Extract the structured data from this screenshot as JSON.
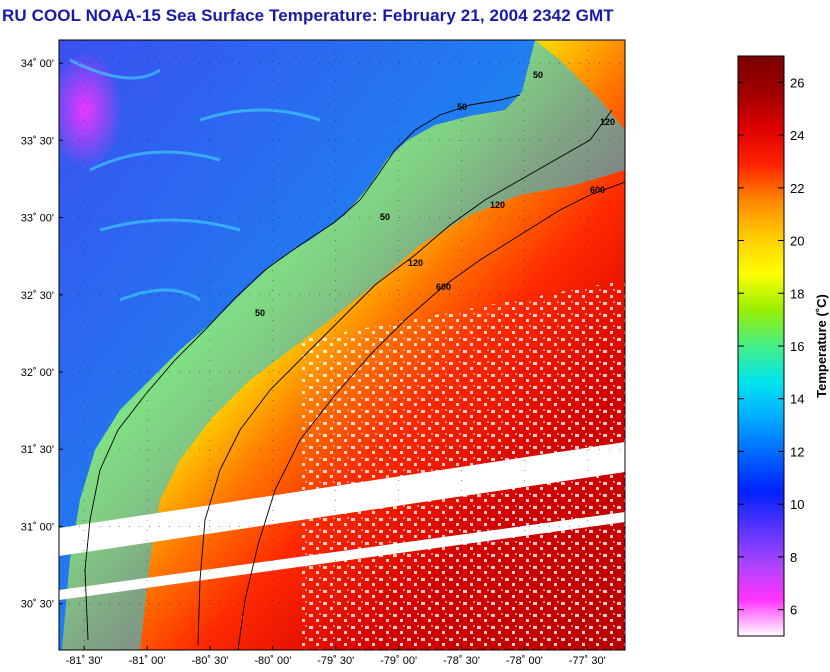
{
  "title": "RU COOL  NOAA-15  Sea Surface Temperature:  February 21, 2004 2342 GMT",
  "map": {
    "lat_labels": [
      "34˚ 00'",
      "33˚ 30'",
      "33˚ 00'",
      "32˚ 30'",
      "32˚ 00'",
      "31˚ 30'",
      "31˚ 00'",
      "30˚ 30'"
    ],
    "lon_labels": [
      "-81˚ 30'",
      "-81˚ 00'",
      "-80˚ 30'",
      "-80˚ 00'",
      "-79˚ 30'",
      "-79˚ 00'",
      "-78˚ 30'",
      "-78˚ 00'",
      "-77˚ 30'"
    ],
    "lat_values": [
      34.0,
      33.5,
      33.0,
      32.5,
      32.0,
      31.5,
      31.0,
      30.5
    ],
    "lon_values": [
      -81.5,
      -81.0,
      -80.5,
      -80.0,
      -79.5,
      -79.0,
      -78.5,
      -78.0,
      -77.5
    ],
    "bathymetry_contours": [
      "50",
      "120",
      "600"
    ]
  },
  "colorbar": {
    "label": "Temperature (˚C)",
    "ticks": [
      "26",
      "24",
      "22",
      "20",
      "18",
      "16",
      "14",
      "12",
      "10",
      "8",
      "6"
    ],
    "tick_values": [
      26,
      24,
      22,
      20,
      18,
      16,
      14,
      12,
      10,
      8,
      6
    ],
    "range": [
      5,
      27
    ],
    "colors": [
      "#ffffff",
      "#ff33ff",
      "#aa44ff",
      "#5533ff",
      "#0022ff",
      "#0066ff",
      "#00aaff",
      "#00e5ee",
      "#44ee88",
      "#99ee00",
      "#ffff00",
      "#ffcc00",
      "#ff8800",
      "#ff2200",
      "#dd0000",
      "#a00000",
      "#7a0000"
    ]
  },
  "colors": {
    "title": "#1a1aa8",
    "land": "#2a6ee8",
    "cloud_swath": "#ffffff"
  }
}
